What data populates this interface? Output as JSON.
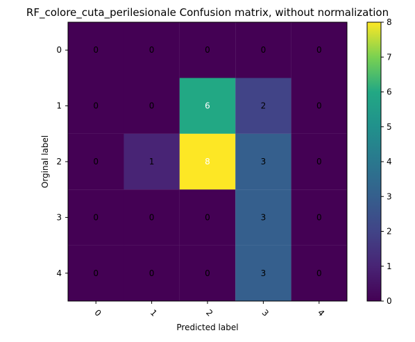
{
  "chart_data": {
    "type": "heatmap",
    "title": "RF_colore_cuta_perilesionale Confusion matrix, without normalization",
    "xlabel": "Predicted label",
    "ylabel": "Orginal label",
    "x_categories": [
      "0",
      "1",
      "2",
      "3",
      "4"
    ],
    "y_categories": [
      "0",
      "1",
      "2",
      "3",
      "4"
    ],
    "matrix": [
      [
        0,
        0,
        0,
        0,
        0
      ],
      [
        0,
        0,
        6,
        2,
        0
      ],
      [
        0,
        1,
        8,
        3,
        0
      ],
      [
        0,
        0,
        0,
        3,
        0
      ],
      [
        0,
        0,
        0,
        3,
        0
      ]
    ],
    "colormap": "viridis",
    "vmin": 0,
    "vmax": 8,
    "colorbar_ticks": [
      0,
      1,
      2,
      3,
      4,
      5,
      6,
      7,
      8
    ],
    "annotation_colors": {
      "dark_text": "#000000",
      "light_text": "#ffffff"
    }
  }
}
